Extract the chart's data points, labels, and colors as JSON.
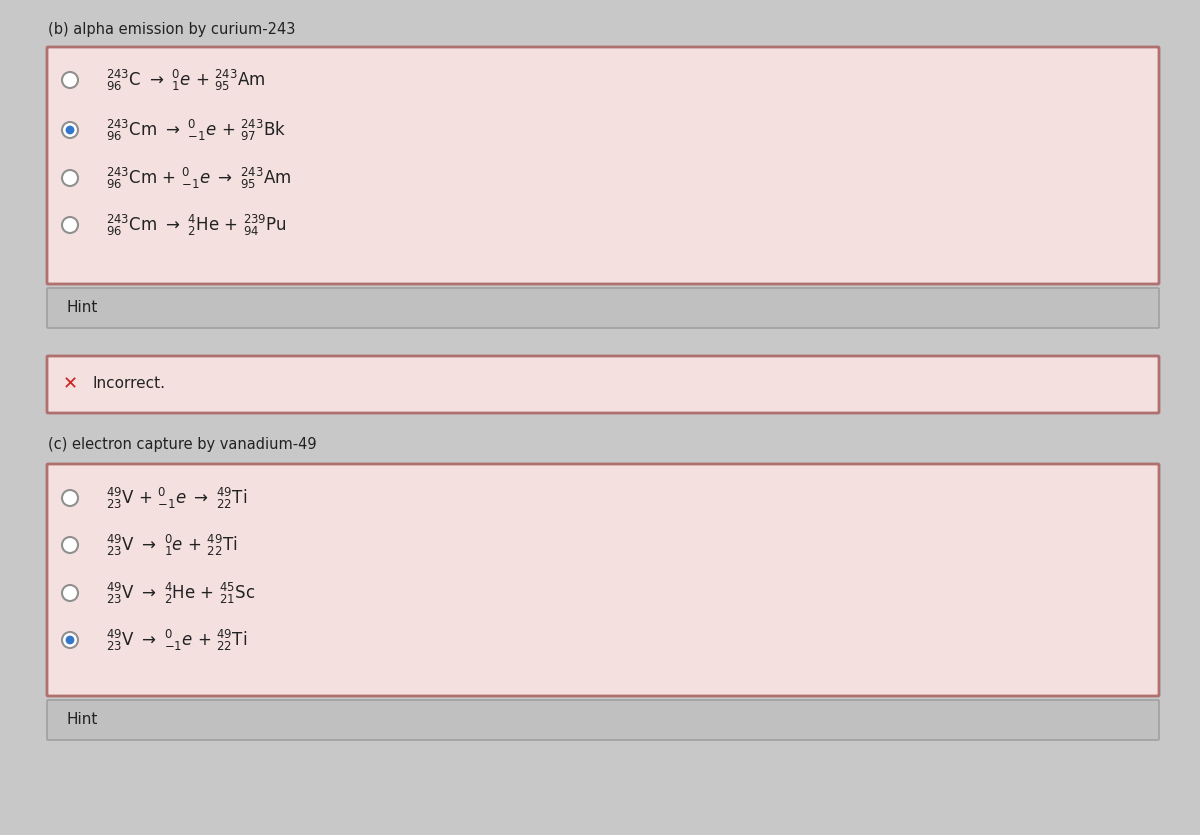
{
  "bg_color": "#c8c8c8",
  "title_b": "(b) alpha emission by curium-243",
  "title_c": "(c) electron capture by vanadium-49",
  "box_bg": "#f5e0e0",
  "box_border": "#b07070",
  "incorrect_bg": "#f5e0e0",
  "incorrect_border": "#b07070",
  "hint_bg": "#c0c0c0",
  "hint_border": "#a0a0a0",
  "radio_unselected_fill": "#ffffff",
  "radio_unselected_edge": "#909090",
  "radio_selected": "#3377cc",
  "text_color": "#222222",
  "incorrect_x_color": "#cc2222",
  "rows_b": [
    {
      "selected": false,
      "text": "$^{243}_{96}$C $\\rightarrow$ $^{0}_{1}e$ + $^{243}_{95}$Am"
    },
    {
      "selected": true,
      "text": "$^{243}_{96}$Cm $\\rightarrow$ $^{0}_{-1}e$ + $^{243}_{97}$Bk"
    },
    {
      "selected": false,
      "text": "$^{243}_{96}$Cm + $^{0}_{-1}e$ $\\rightarrow$ $^{243}_{95}$Am"
    },
    {
      "selected": false,
      "text": "$^{243}_{96}$Cm $\\rightarrow$ $^{4}_{2}$He + $^{239}_{94}$Pu"
    }
  ],
  "rows_c": [
    {
      "selected": false,
      "text": "$^{49}_{23}$V + $^{0}_{-1}e$ $\\rightarrow$ $^{49}_{22}$Ti"
    },
    {
      "selected": false,
      "text": "$^{49}_{23}$V $\\rightarrow$ $^{0}_{1}e$ + $^{49}_{22}$Ti"
    },
    {
      "selected": false,
      "text": "$^{49}_{23}$V $\\rightarrow$ $^{4}_{2}$He + $^{45}_{21}$Sc"
    },
    {
      "selected": true,
      "text": "$^{49}_{23}$V $\\rightarrow$ $^{0}_{-1}e$ + $^{49}_{22}$Ti"
    }
  ],
  "fig_width": 12.0,
  "fig_height": 8.35,
  "dpi": 100
}
